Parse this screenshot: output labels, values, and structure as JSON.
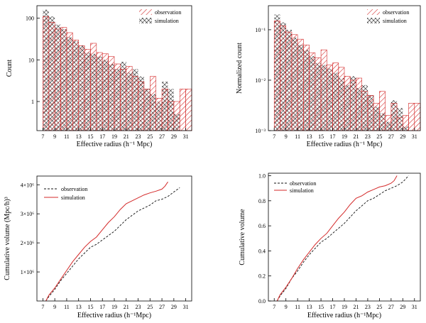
{
  "colors": {
    "observation": "#d42a2a",
    "simulation": "#111111",
    "axis": "#000000"
  },
  "chart_data": [
    {
      "type": "bar",
      "scale": "log",
      "title": "",
      "xlabel": "Effective radius (h⁻¹ Mpc)",
      "ylabel": "Count",
      "xlim": [
        6,
        32
      ],
      "ylim": [
        0.2,
        200
      ],
      "xticks": [
        "7",
        "9",
        "11",
        "13",
        "15",
        "17",
        "19",
        "21",
        "23",
        "25",
        "27",
        "29",
        "31"
      ],
      "yticks": [
        {
          "value": 1,
          "label": "1"
        },
        {
          "value": 10,
          "label": "10"
        },
        {
          "value": 100,
          "label": "100"
        }
      ],
      "bin_width": 1,
      "bin_starts": [
        7,
        8,
        9,
        10,
        11,
        12,
        13,
        14,
        15,
        16,
        17,
        18,
        19,
        20,
        21,
        22,
        23,
        24,
        25,
        26,
        27,
        28,
        29,
        30,
        31
      ],
      "legend": "top-right",
      "series": [
        {
          "name": "observation",
          "style": "hatch-red",
          "values": [
            110,
            80,
            55,
            60,
            45,
            30,
            22,
            18,
            25,
            15,
            14,
            12,
            8,
            6,
            7,
            4,
            3,
            2,
            4,
            1.2,
            2,
            1,
            1,
            2,
            2
          ]
        },
        {
          "name": "simulation",
          "style": "crosshatch-black",
          "values": [
            160,
            110,
            70,
            55,
            35,
            28,
            22,
            15,
            14,
            12,
            10,
            8,
            6,
            9,
            5,
            6,
            4,
            2,
            1.5,
            1,
            3,
            2,
            0.5,
            0,
            0
          ]
        }
      ]
    },
    {
      "type": "bar",
      "scale": "log",
      "title": "",
      "xlabel": "Effective radius (h⁻¹ Mpc)",
      "ylabel": "Normalized count",
      "xlim": [
        6,
        32
      ],
      "ylim": [
        0.001,
        0.3
      ],
      "xticks": [
        "7",
        "9",
        "11",
        "13",
        "15",
        "17",
        "19",
        "21",
        "23",
        "25",
        "27",
        "29",
        "31"
      ],
      "yticks": [
        {
          "value": 0.001,
          "label": "10⁻³"
        },
        {
          "value": 0.01,
          "label": "10⁻²"
        },
        {
          "value": 0.1,
          "label": "10⁻¹"
        }
      ],
      "bin_width": 1,
      "bin_starts": [
        7,
        8,
        9,
        10,
        11,
        12,
        13,
        14,
        15,
        16,
        17,
        18,
        19,
        20,
        21,
        22,
        23,
        24,
        25,
        26,
        27,
        28,
        29,
        30,
        31
      ],
      "legend": "top-right",
      "series": [
        {
          "name": "observation",
          "style": "hatch-red",
          "values": [
            0.15,
            0.12,
            0.09,
            0.08,
            0.065,
            0.05,
            0.035,
            0.028,
            0.04,
            0.02,
            0.022,
            0.018,
            0.012,
            0.01,
            0.011,
            0.006,
            0.005,
            0.0035,
            0.006,
            0.002,
            0.0035,
            0.0018,
            0.002,
            0.0035,
            0.0035
          ]
        },
        {
          "name": "simulation",
          "style": "crosshatch-black",
          "values": [
            0.2,
            0.14,
            0.1,
            0.07,
            0.05,
            0.04,
            0.03,
            0.022,
            0.02,
            0.017,
            0.014,
            0.011,
            0.008,
            0.012,
            0.007,
            0.008,
            0.005,
            0.003,
            0.0022,
            0.0015,
            0.004,
            0.0028,
            0.0012,
            0,
            0
          ]
        }
      ]
    },
    {
      "type": "line",
      "title": "",
      "xlabel": "Effective radius (h⁻¹Mpc)",
      "ylabel": "Cumulative volume (Mpc/h)³",
      "xlim": [
        6,
        32
      ],
      "ylim": [
        0,
        4.3
      ],
      "xticks": [
        "7",
        "9",
        "11",
        "13",
        "15",
        "17",
        "19",
        "21",
        "23",
        "25",
        "27",
        "29",
        "31"
      ],
      "yticks": [
        {
          "value": 1,
          "label": "1×10⁶"
        },
        {
          "value": 2,
          "label": "2×10⁶"
        },
        {
          "value": 3,
          "label": "3×10⁶"
        },
        {
          "value": 4,
          "label": "4×10⁶"
        }
      ],
      "legend": "top-left",
      "series": [
        {
          "name": "observation",
          "style": "dashed",
          "x": [
            7.5,
            8,
            9,
            10,
            11,
            12,
            13,
            14,
            15,
            16,
            17,
            18,
            19,
            20,
            21,
            22,
            23,
            24,
            25,
            26,
            27,
            28,
            29,
            30
          ],
          "y": [
            0,
            0.15,
            0.4,
            0.7,
            0.95,
            1.2,
            1.45,
            1.65,
            1.85,
            1.95,
            2.1,
            2.25,
            2.4,
            2.6,
            2.8,
            2.95,
            3.1,
            3.2,
            3.3,
            3.45,
            3.5,
            3.6,
            3.75,
            3.9
          ]
        },
        {
          "name": "simulation",
          "style": "solid-red",
          "x": [
            7.5,
            8,
            9,
            10,
            11,
            12,
            13,
            14,
            15,
            16,
            17,
            18,
            19,
            20,
            21,
            22,
            23,
            24,
            25,
            26,
            27,
            27.5,
            28
          ],
          "y": [
            0,
            0.2,
            0.45,
            0.75,
            1.05,
            1.35,
            1.6,
            1.85,
            2.05,
            2.2,
            2.45,
            2.7,
            2.9,
            3.15,
            3.35,
            3.45,
            3.55,
            3.65,
            3.72,
            3.78,
            3.85,
            3.95,
            4.1
          ]
        }
      ]
    },
    {
      "type": "line",
      "title": "",
      "xlabel": "Effective radius (h⁻¹Mpc)",
      "ylabel": "Cumulative volume",
      "xlim": [
        6,
        32
      ],
      "ylim": [
        0,
        1.02
      ],
      "xticks": [
        "7",
        "9",
        "11",
        "13",
        "15",
        "17",
        "19",
        "21",
        "23",
        "25",
        "27",
        "29",
        "31"
      ],
      "yticks": [
        {
          "value": 0,
          "label": "0.0"
        },
        {
          "value": 0.2,
          "label": "0.2"
        },
        {
          "value": 0.4,
          "label": "0.4"
        },
        {
          "value": 0.6,
          "label": "0.6"
        },
        {
          "value": 0.8,
          "label": "0.8"
        },
        {
          "value": 1.0,
          "label": "1.0"
        }
      ],
      "legend": "top-left",
      "series": [
        {
          "name": "observation",
          "style": "dashed",
          "x": [
            7.5,
            8,
            9,
            10,
            11,
            12,
            13,
            14,
            15,
            16,
            17,
            18,
            19,
            20,
            21,
            22,
            23,
            24,
            25,
            26,
            27,
            28,
            29,
            30
          ],
          "y": [
            0,
            0.04,
            0.1,
            0.18,
            0.24,
            0.31,
            0.37,
            0.42,
            0.47,
            0.5,
            0.54,
            0.58,
            0.62,
            0.67,
            0.72,
            0.76,
            0.8,
            0.82,
            0.85,
            0.88,
            0.9,
            0.92,
            0.95,
            1.0
          ]
        },
        {
          "name": "simulation",
          "style": "solid-red",
          "x": [
            7.5,
            8,
            9,
            10,
            11,
            12,
            13,
            14,
            15,
            16,
            17,
            18,
            19,
            20,
            21,
            22,
            23,
            24,
            25,
            26,
            27,
            27.5,
            28
          ],
          "y": [
            0,
            0.05,
            0.11,
            0.18,
            0.26,
            0.33,
            0.39,
            0.45,
            0.5,
            0.54,
            0.6,
            0.66,
            0.71,
            0.77,
            0.82,
            0.84,
            0.87,
            0.89,
            0.91,
            0.92,
            0.94,
            0.96,
            1.0
          ]
        }
      ]
    }
  ]
}
